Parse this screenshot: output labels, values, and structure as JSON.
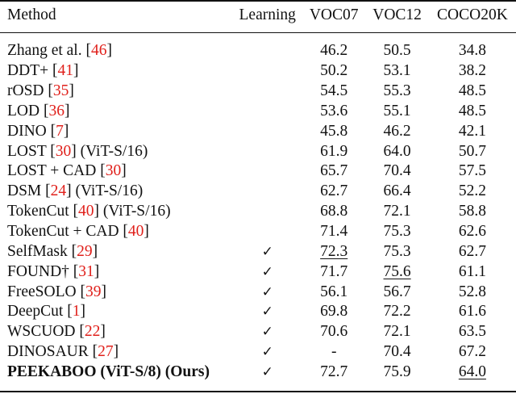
{
  "header": {
    "method": "Method",
    "learning": "Learning",
    "voc07": "VOC07",
    "voc12": "VOC12",
    "coco": "COCO20K"
  },
  "rows": [
    {
      "name": "Zhang et al. [",
      "ref": "46",
      "suffix": "]",
      "learning": "",
      "voc07": "46.2",
      "voc12": "50.5",
      "coco": "34.8"
    },
    {
      "name": "DDT+ [",
      "ref": "41",
      "suffix": "]",
      "learning": "",
      "voc07": "50.2",
      "voc12": "53.1",
      "coco": "38.2"
    },
    {
      "name": "rOSD [",
      "ref": "35",
      "suffix": "]",
      "learning": "",
      "voc07": "54.5",
      "voc12": "55.3",
      "coco": "48.5"
    },
    {
      "name": "LOD [",
      "ref": "36",
      "suffix": "]",
      "learning": "",
      "voc07": "53.6",
      "voc12": "55.1",
      "coco": "48.5"
    },
    {
      "name": "DINO [",
      "ref": "7",
      "suffix": "]",
      "learning": "",
      "voc07": "45.8",
      "voc12": "46.2",
      "coco": "42.1"
    },
    {
      "name": "LOST [",
      "ref": "30",
      "suffix": "] (ViT-S/16)",
      "learning": "",
      "voc07": "61.9",
      "voc12": "64.0",
      "coco": "50.7"
    },
    {
      "name": "LOST + CAD [",
      "ref": "30",
      "suffix": "]",
      "learning": "",
      "voc07": "65.7",
      "voc12": "70.4",
      "coco": "57.5"
    },
    {
      "name": "DSM [",
      "ref": "24",
      "suffix": "] (ViT-S/16)",
      "learning": "",
      "voc07": "62.7",
      "voc12": "66.4",
      "coco": "52.2"
    },
    {
      "name": "TokenCut [",
      "ref": "40",
      "suffix": "] (ViT-S/16)",
      "learning": "",
      "voc07": "68.8",
      "voc12": "72.1",
      "coco": "58.8"
    },
    {
      "name": "TokenCut + CAD [",
      "ref": "40",
      "suffix": "]",
      "learning": "",
      "voc07": "71.4",
      "voc12": "75.3",
      "coco": "62.6"
    },
    {
      "name": "SelfMask [",
      "ref": "29",
      "suffix": "]",
      "learning": "✓",
      "voc07": "72.3",
      "voc12": "75.3",
      "coco": "62.7"
    },
    {
      "name": "FOUND† [",
      "ref": "31",
      "suffix": "]",
      "learning": "✓",
      "voc07": "71.7",
      "voc12": "75.6",
      "coco": "61.1"
    },
    {
      "name": "FreeSOLO [",
      "ref": "39",
      "suffix": "]",
      "learning": "✓",
      "voc07": "56.1",
      "voc12": "56.7",
      "coco": "52.8"
    },
    {
      "name": "DeepCut [",
      "ref": "1",
      "suffix": "]",
      "learning": "✓",
      "voc07": "69.8",
      "voc12": "72.2",
      "coco": "61.6"
    },
    {
      "name": "WSCUOD [",
      "ref": "22",
      "suffix": "]",
      "learning": "✓",
      "voc07": "70.6",
      "voc12": "72.1",
      "coco": "63.5"
    },
    {
      "name": "DINOSAUR [",
      "ref": "27",
      "suffix": "]",
      "learning": "✓",
      "voc07": "-",
      "voc12": "70.4",
      "coco": "67.2"
    },
    {
      "name": "PEEKABOO (ViT-S/8) (Ours)",
      "ref": "",
      "suffix": "",
      "learning": "✓",
      "voc07": "72.7",
      "voc12": "75.9",
      "coco": "64.0"
    }
  ],
  "colors": {
    "reference": "#e0201b",
    "text": "#111111"
  }
}
